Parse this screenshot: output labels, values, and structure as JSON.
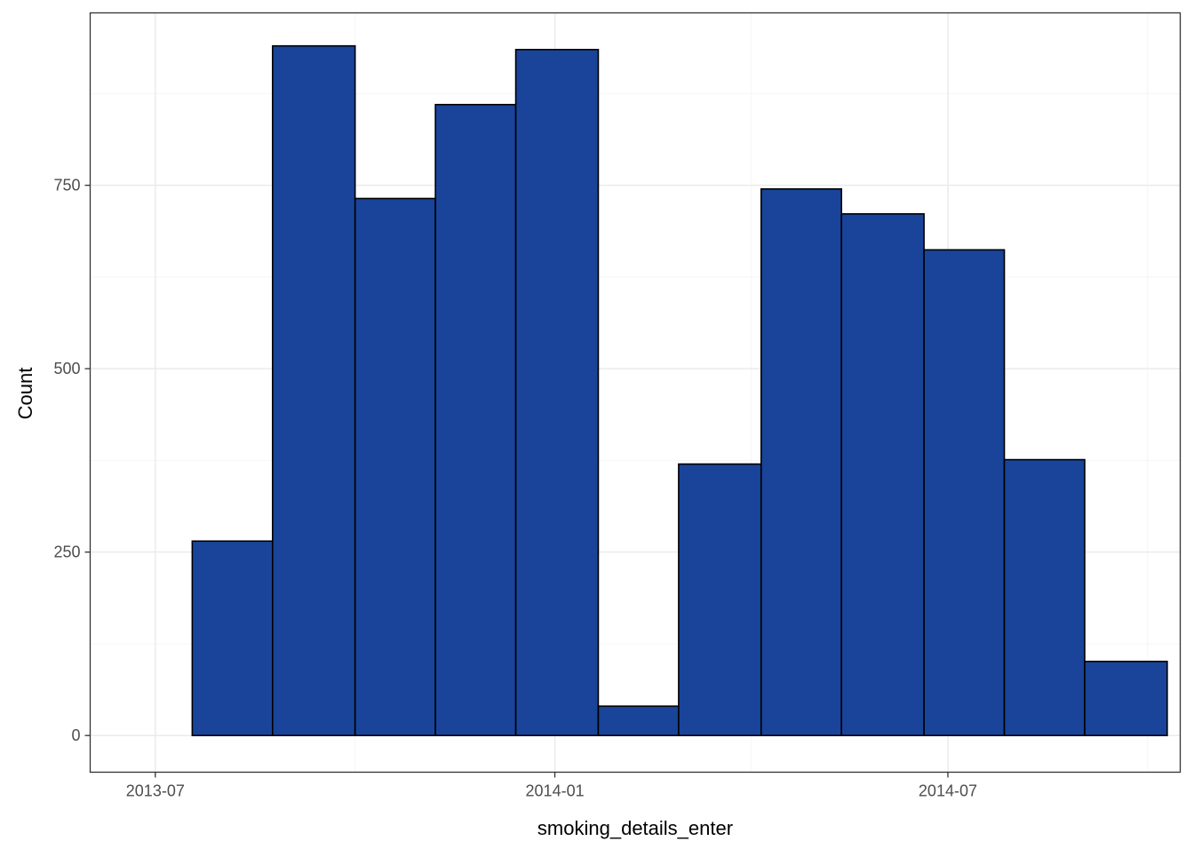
{
  "chart_data": {
    "type": "bar",
    "subtype": "histogram",
    "title": "",
    "xlabel": "smoking_details_enter",
    "ylabel": "Count",
    "x_axis": {
      "type": "date",
      "range": [
        "2013-06-01",
        "2014-10-16"
      ],
      "ticks": [
        {
          "value": "2013-07-01",
          "label": "2013-07"
        },
        {
          "value": "2014-01-01",
          "label": "2014-01"
        },
        {
          "value": "2014-07-01",
          "label": "2014-07"
        }
      ]
    },
    "y_axis": {
      "range": [
        -50,
        985
      ],
      "ticks": [
        {
          "value": 0,
          "label": "0"
        },
        {
          "value": 250,
          "label": "250"
        },
        {
          "value": 500,
          "label": "500"
        },
        {
          "value": 750,
          "label": "750"
        }
      ]
    },
    "bins": [
      {
        "start": "2013-07-18",
        "end": "2013-08-24",
        "count": 265
      },
      {
        "start": "2013-08-24",
        "end": "2013-10-01",
        "count": 940
      },
      {
        "start": "2013-10-01",
        "end": "2013-11-07",
        "count": 732
      },
      {
        "start": "2013-11-07",
        "end": "2013-12-14",
        "count": 860
      },
      {
        "start": "2013-12-14",
        "end": "2014-01-21",
        "count": 935
      },
      {
        "start": "2014-01-21",
        "end": "2014-02-27",
        "count": 40
      },
      {
        "start": "2014-02-27",
        "end": "2014-04-06",
        "count": 370
      },
      {
        "start": "2014-04-06",
        "end": "2014-05-13",
        "count": 745
      },
      {
        "start": "2014-05-13",
        "end": "2014-06-20",
        "count": 711
      },
      {
        "start": "2014-06-20",
        "end": "2014-07-27",
        "count": 662
      },
      {
        "start": "2014-07-27",
        "end": "2014-09-02",
        "count": 376
      },
      {
        "start": "2014-09-02",
        "end": "2014-10-10",
        "count": 101
      }
    ],
    "grid": true,
    "legend": "none",
    "colors": {
      "bar_fill": "#19449A",
      "bar_stroke": "#000000",
      "panel_border": "#333333",
      "grid_major": "#EBEBEB",
      "grid_minor": "#F5F5F5"
    }
  }
}
